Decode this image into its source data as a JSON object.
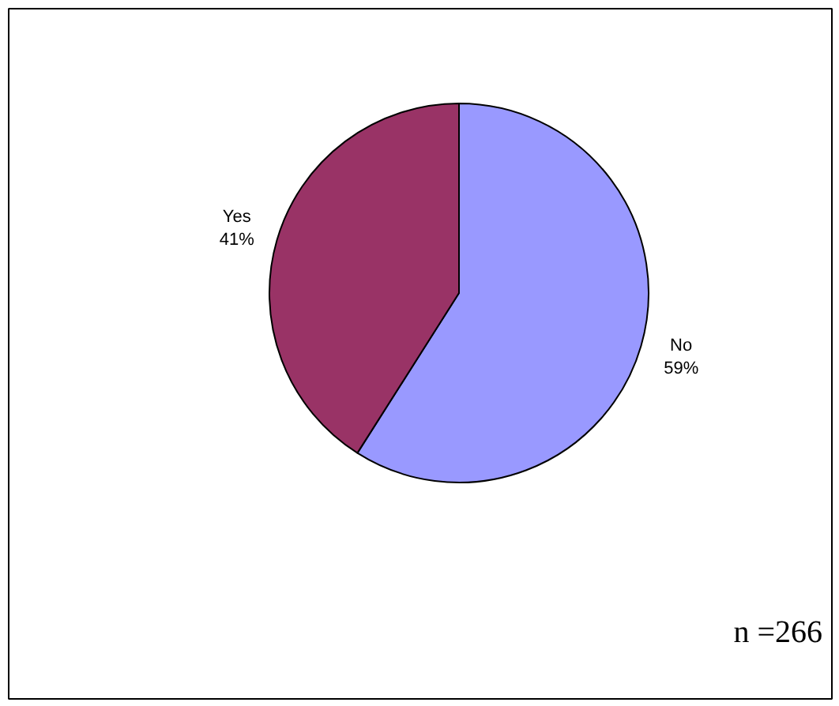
{
  "chart_data": {
    "type": "pie",
    "categories": [
      "No",
      "Yes"
    ],
    "values": [
      59,
      41
    ],
    "value_labels": [
      "59%",
      "41%"
    ],
    "colors": [
      "#9999ff",
      "#993366"
    ],
    "annotations": [
      "n =266"
    ]
  }
}
